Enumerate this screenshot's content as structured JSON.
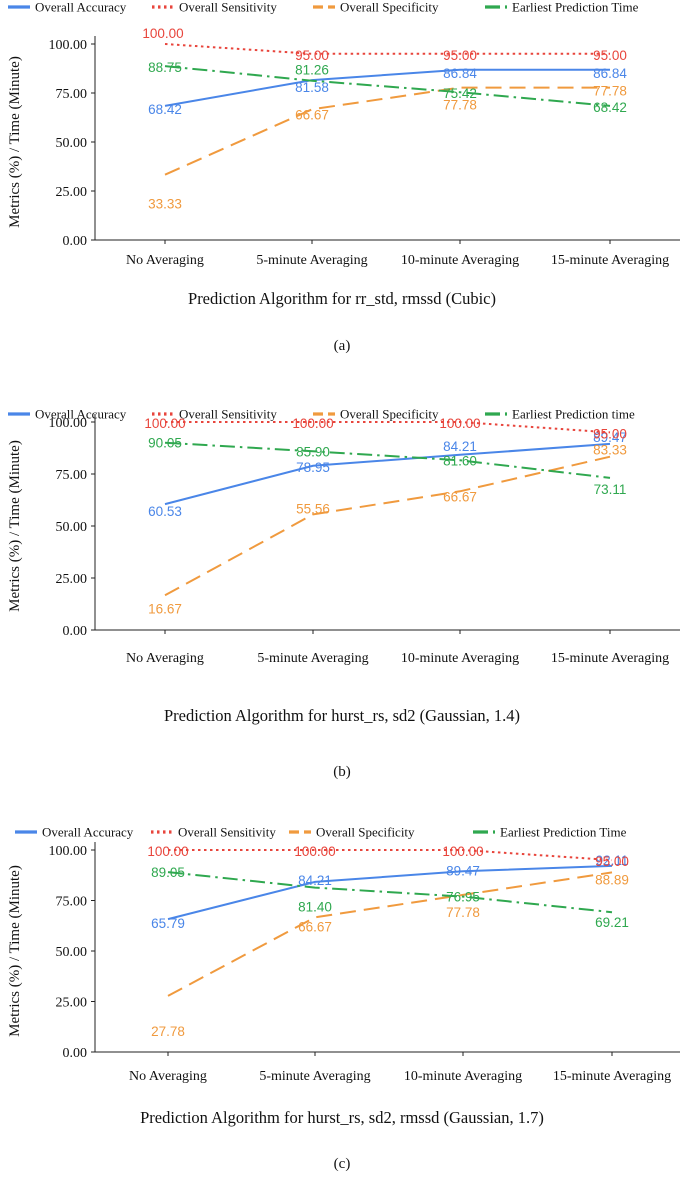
{
  "colors": {
    "accuracy": "#4a86e8",
    "sensitivity": "#e8453c",
    "specificity": "#f09a3e",
    "earliest": "#2fa84f",
    "axis": "#222222"
  },
  "chart_data": [
    {
      "type": "line",
      "caption": "(a)",
      "title": "",
      "xlabel": "Prediction Algorithm for rr_std, rmssd (Cubic)",
      "ylabel": "Metrics (%) / Time (Minute)",
      "ylim": [
        0,
        100
      ],
      "yticks": [
        "0.00",
        "25.00",
        "50.00",
        "75.00",
        "100.00"
      ],
      "categories": [
        "No Averaging",
        "5-minute Averaging",
        "10-minute Averaging",
        "15-minute Averaging"
      ],
      "series": [
        {
          "key": "accuracy",
          "name": "Overall Accuracy",
          "values": [
            68.42,
            81.58,
            86.84,
            86.84
          ],
          "labels": [
            "68.42",
            "81.58",
            "86.84",
            "86.84"
          ]
        },
        {
          "key": "sensitivity",
          "name": "Overall Sensitivity",
          "values": [
            100.0,
            95.0,
            95.0,
            95.0
          ],
          "labels": [
            "100.00",
            "95.00",
            "95.00",
            "95.00"
          ]
        },
        {
          "key": "specificity",
          "name": "Overall Specificity",
          "values": [
            33.33,
            66.67,
            77.78,
            77.78
          ],
          "labels": [
            "33.33",
            "66.67",
            "77.78",
            "77.78"
          ]
        },
        {
          "key": "earliest",
          "name": "Earliest Prediction Time",
          "values": [
            88.75,
            81.26,
            75.42,
            68.42
          ],
          "labels": [
            "88.75",
            "81.26",
            "75.42",
            "68.42"
          ]
        }
      ]
    },
    {
      "type": "line",
      "caption": "(b)",
      "title": "",
      "xlabel": "Prediction Algorithm for hurst_rs, sd2 (Gaussian, 1.4)",
      "ylabel": "Metrics (%) / Time (Minute)",
      "ylim": [
        0,
        100
      ],
      "yticks": [
        "0.00",
        "25.00",
        "50.00",
        "75.00",
        "100.00"
      ],
      "categories": [
        "No Averaging",
        "5-minute Averaging",
        "10-minute Averaging",
        "15-minute Averaging"
      ],
      "series": [
        {
          "key": "accuracy",
          "name": "Overall Accuracy",
          "values": [
            60.53,
            78.95,
            84.21,
            89.47
          ],
          "labels": [
            "60.53",
            "78.95",
            "84.21",
            "89.47"
          ]
        },
        {
          "key": "sensitivity",
          "name": "Overall Sensitivity",
          "values": [
            100.0,
            100.0,
            100.0,
            95.0
          ],
          "labels": [
            "100.00",
            "100.00",
            "100.00",
            "95.00"
          ]
        },
        {
          "key": "specificity",
          "name": "Overall Specificity",
          "values": [
            16.67,
            55.56,
            66.67,
            83.33
          ],
          "labels": [
            "16.67",
            "55.56",
            "66.67",
            "83.33"
          ]
        },
        {
          "key": "earliest",
          "name": "Earliest Prediction time",
          "values": [
            90.05,
            85.9,
            81.6,
            73.11
          ],
          "labels": [
            "90.05",
            "85.90",
            "81.60",
            "73.11"
          ]
        }
      ]
    },
    {
      "type": "line",
      "caption": "(c)",
      "title": "",
      "xlabel": "Prediction Algorithm for hurst_rs, sd2, rmssd (Gaussian, 1.7)",
      "ylabel": "Metrics (%) / Time (Minute)",
      "ylim": [
        0,
        100
      ],
      "yticks": [
        "0.00",
        "25.00",
        "50.00",
        "75.00",
        "100.00"
      ],
      "categories": [
        "No Averaging",
        "5-minute Averaging",
        "10-minute Averaging",
        "15-minute Averaging"
      ],
      "series": [
        {
          "key": "accuracy",
          "name": "Overall Accuracy",
          "values": [
            65.79,
            84.21,
            89.47,
            92.11
          ],
          "labels": [
            "65.79",
            "84.21",
            "89.47",
            "92.11"
          ]
        },
        {
          "key": "sensitivity",
          "name": "Overall Sensitivity",
          "values": [
            100.0,
            100.0,
            100.0,
            95.0
          ],
          "labels": [
            "100.00",
            "100.00",
            "100.00",
            "95.00"
          ]
        },
        {
          "key": "specificity",
          "name": "Overall Specificity",
          "values": [
            27.78,
            66.67,
            77.78,
            88.89
          ],
          "labels": [
            "27.78",
            "66.67",
            "77.78",
            "88.89"
          ]
        },
        {
          "key": "earliest",
          "name": "Earliest Prediction Time",
          "values": [
            89.05,
            81.4,
            76.95,
            69.21
          ],
          "labels": [
            "89.05",
            "81.40",
            "76.95",
            "69.21"
          ]
        }
      ]
    }
  ]
}
